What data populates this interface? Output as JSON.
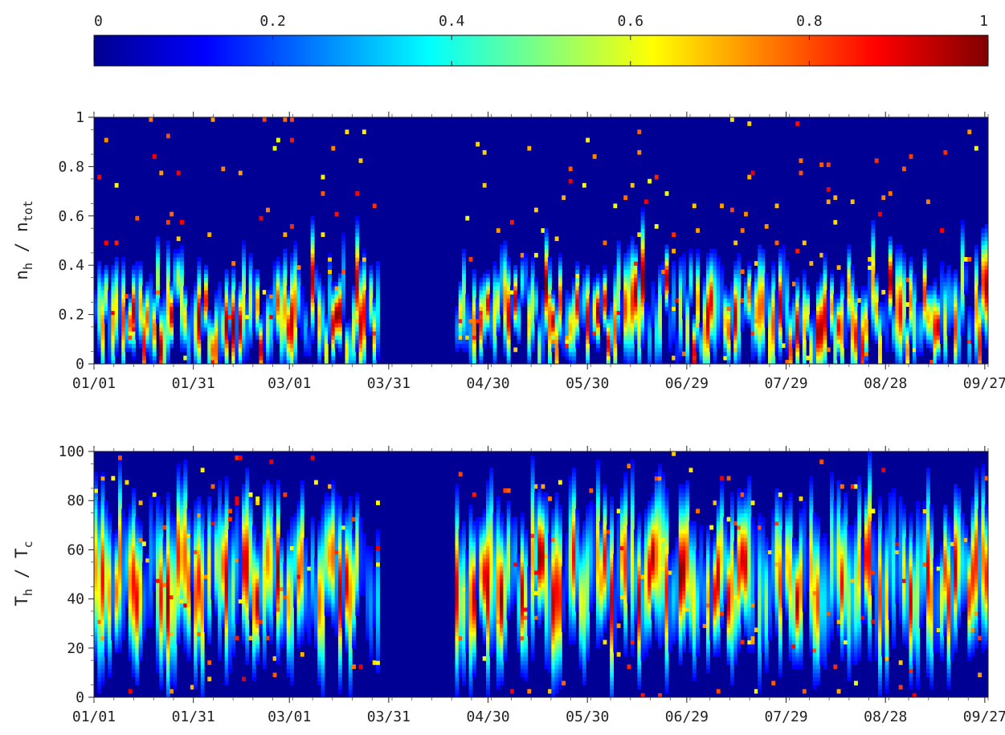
{
  "colorbar": {
    "ticks": [
      "0",
      "0.2",
      "0.4",
      "0.6",
      "0.8",
      "1"
    ],
    "range": [
      0,
      1
    ],
    "colormap": "jet"
  },
  "chart_data": [
    {
      "type": "heatmap",
      "title": "",
      "xlabel": "",
      "ylabel": {
        "main": "n",
        "sub1": "h",
        "sep": " / n",
        "sub2": "tot"
      },
      "x_ticks": [
        "01/01",
        "01/31",
        "03/01",
        "03/31",
        "04/30",
        "05/30",
        "06/29",
        "07/29",
        "08/28",
        "09/27"
      ],
      "x_range_days": [
        0,
        270
      ],
      "y_ticks": [
        "0",
        "0.2",
        "0.4",
        "0.6",
        "0.8",
        "1"
      ],
      "ylim": [
        0,
        1
      ],
      "data_gaps": [
        [
          "03/28",
          "04/20"
        ]
      ],
      "note_values": "Color = normalized density (0–1). Ridge concentrations around y≈0.2 with occasional bands up to 0.8; near-empty gap late March to mid-April."
    },
    {
      "type": "heatmap",
      "title": "",
      "xlabel": "",
      "ylabel": {
        "main": "T",
        "sub1": "h",
        "sep": " / T",
        "sub2": "c"
      },
      "x_ticks": [
        "01/01",
        "01/31",
        "03/01",
        "03/31",
        "04/30",
        "05/30",
        "06/29",
        "07/29",
        "08/28",
        "09/27"
      ],
      "x_range_days": [
        0,
        270
      ],
      "y_ticks": [
        "0",
        "20",
        "40",
        "60",
        "80",
        "100"
      ],
      "ylim": [
        0,
        100
      ],
      "data_gaps": [
        [
          "03/28",
          "04/20"
        ]
      ],
      "note_values": "Color = normalized density (0–1). Broad band around y≈40–60 with spread 20–80; same late-March/April gap."
    }
  ]
}
